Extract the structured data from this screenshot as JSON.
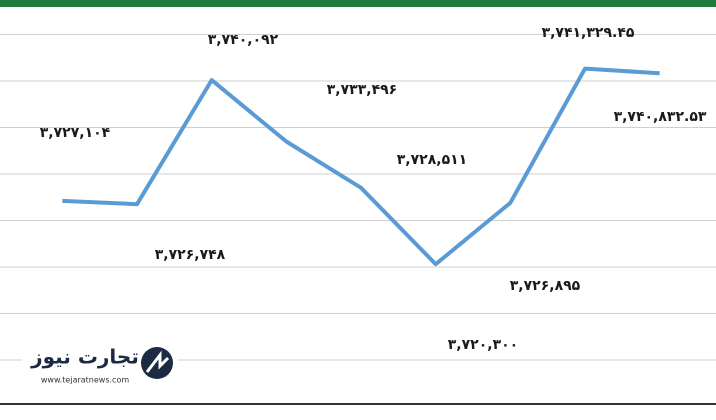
{
  "chart_data": {
    "type": "line",
    "categories": [
      null,
      null,
      null,
      null,
      null,
      null,
      null,
      null,
      null
    ],
    "series": [
      {
        "color": "#5b9bd5",
        "values": [
          3727104,
          3726748,
          3740092,
          3733496,
          3728511,
          3720300,
          3726895,
          3741329.45,
          3740832.53
        ],
        "value_labels": [
          "۳,۷۲۷,۱۰۴",
          "۳,۷۲۶,۷۴۸",
          "۳,۷۴۰,۰۹۲",
          "۳,۷۳۳,۴۹۶",
          "۳,۷۲۸,۵۱۱",
          "۳,۷۲۰,۳۰۰",
          "۳,۷۲۶,۸۹۵",
          "۳,۷۴۱,۳۲۹.۴۵",
          "۳,۷۴۰,۸۳۲.۵۳"
        ]
      }
    ],
    "ylim": [
      3710000,
      3745000
    ],
    "yticks": [
      3710000,
      3715000,
      3720000,
      3725000,
      3730000,
      3735000,
      3740000,
      3745000
    ],
    "grid": true
  },
  "logo": {
    "name": "تجارت نیوز",
    "url": "www.tejaratnews.com"
  }
}
